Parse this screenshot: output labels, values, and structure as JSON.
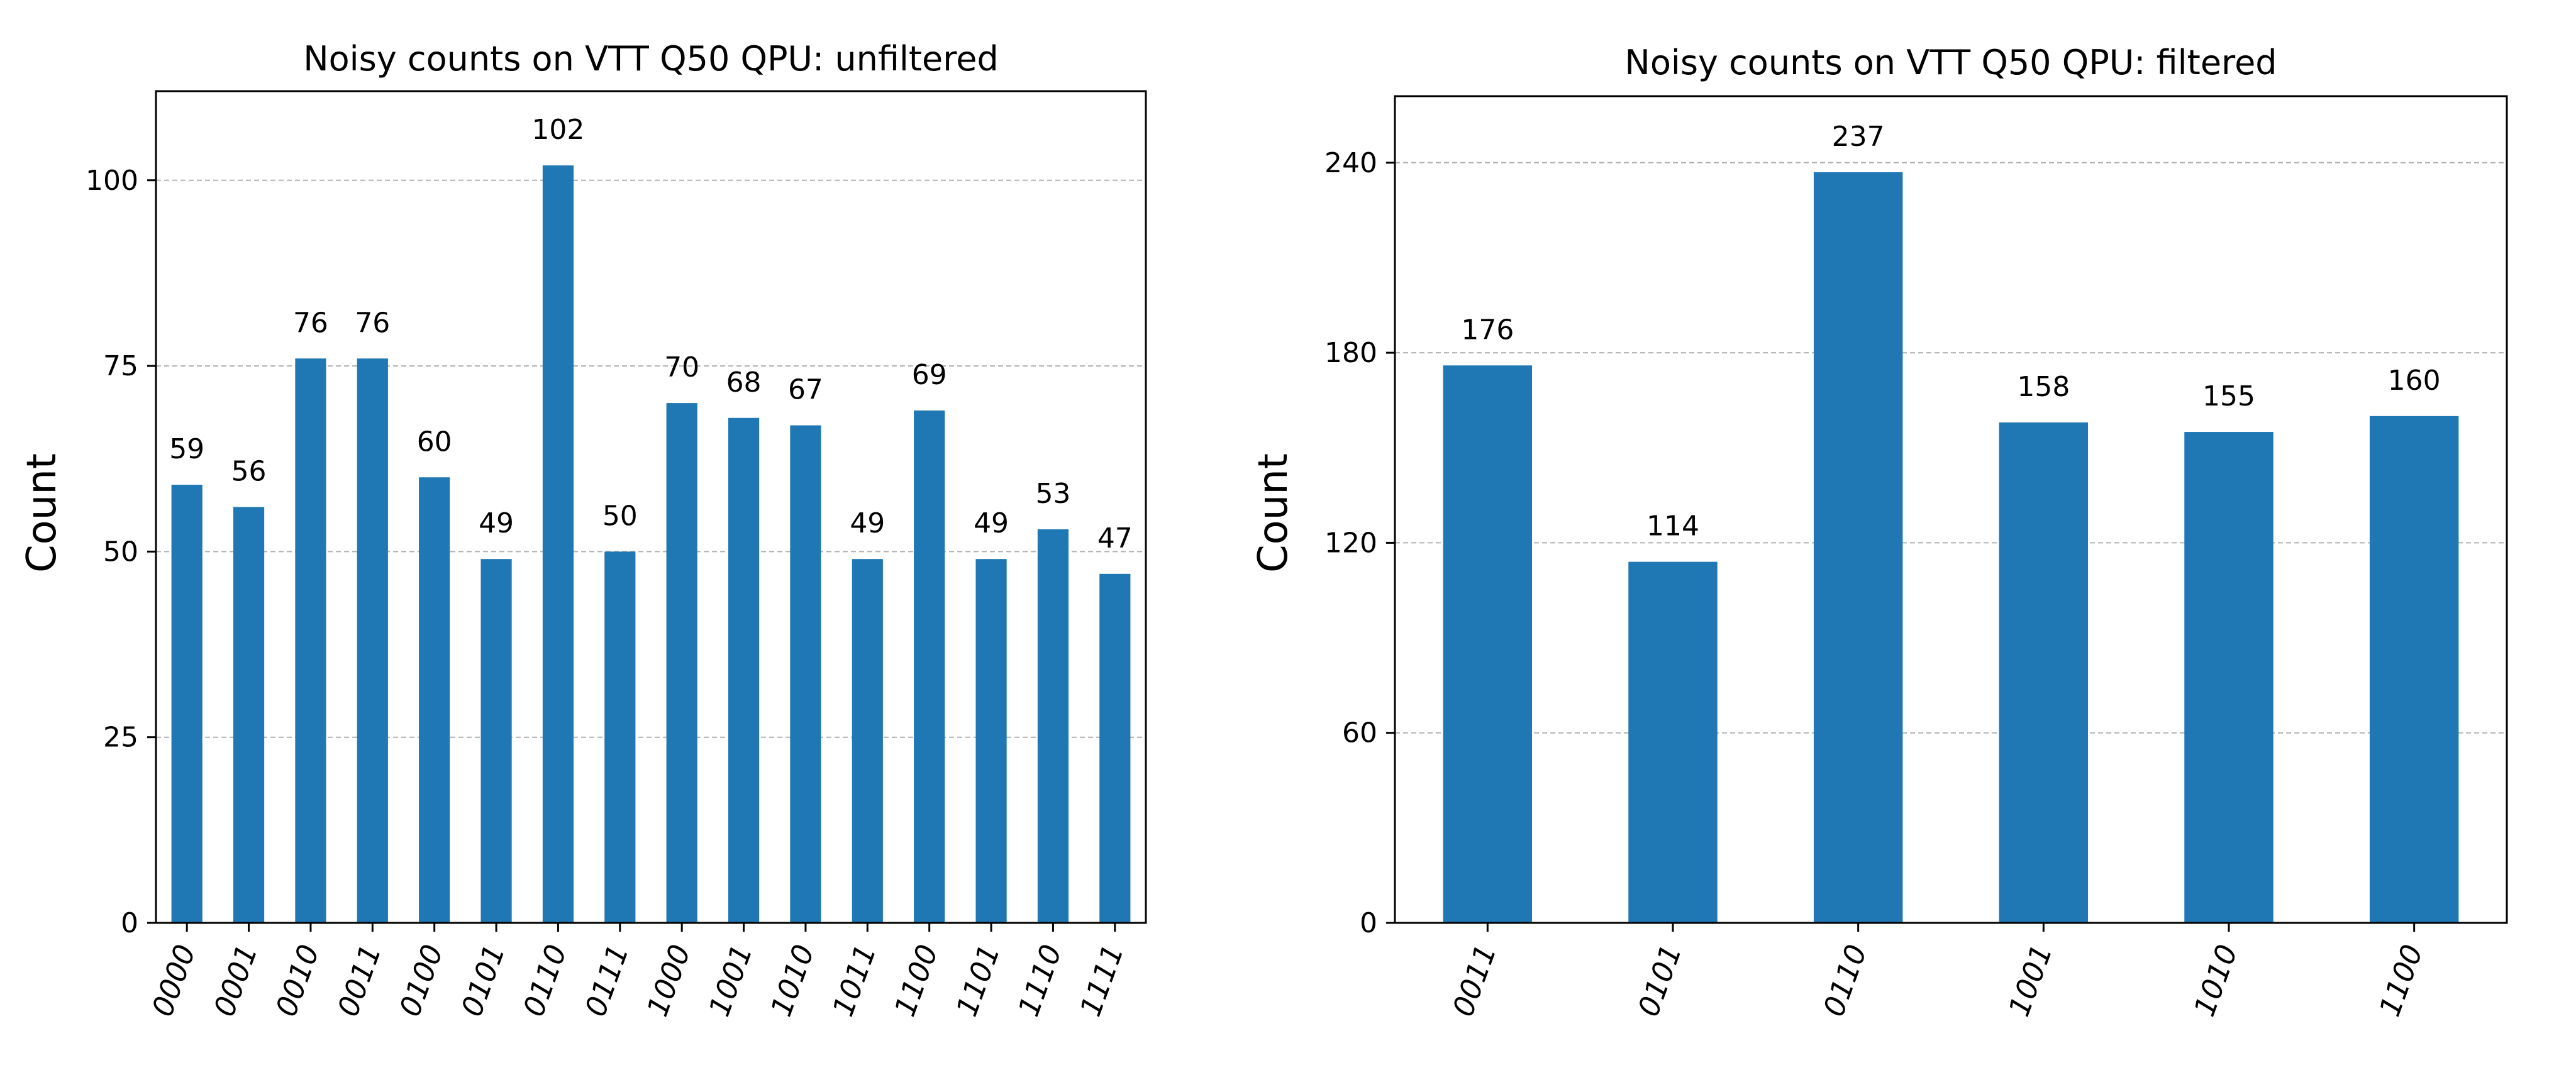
{
  "chart_data": [
    {
      "type": "bar",
      "title": "Noisy counts on VTT Q50 QPU: unfiltered",
      "xlabel": "",
      "ylabel": "Count",
      "ylim": [
        0,
        112
      ],
      "yticks": [
        0,
        25,
        50,
        75,
        100
      ],
      "grid": "horizontal dashed",
      "categories": [
        "0000",
        "0001",
        "0010",
        "0011",
        "0100",
        "0101",
        "0110",
        "0111",
        "1000",
        "1001",
        "1010",
        "1011",
        "1100",
        "1101",
        "1110",
        "1111"
      ],
      "values": [
        59,
        56,
        76,
        76,
        60,
        49,
        102,
        50,
        70,
        68,
        67,
        49,
        69,
        49,
        53,
        47
      ],
      "bar_color": "#1f77b4"
    },
    {
      "type": "bar",
      "title": "Noisy counts on VTT Q50 QPU: filtered",
      "xlabel": "",
      "ylabel": "Count",
      "ylim": [
        0,
        261
      ],
      "yticks": [
        0,
        60,
        120,
        180,
        240
      ],
      "grid": "horizontal dashed",
      "categories": [
        "0011",
        "0101",
        "0110",
        "1001",
        "1010",
        "1100"
      ],
      "values": [
        176,
        114,
        237,
        158,
        155,
        160
      ],
      "bar_color": "#1f77b4"
    }
  ]
}
